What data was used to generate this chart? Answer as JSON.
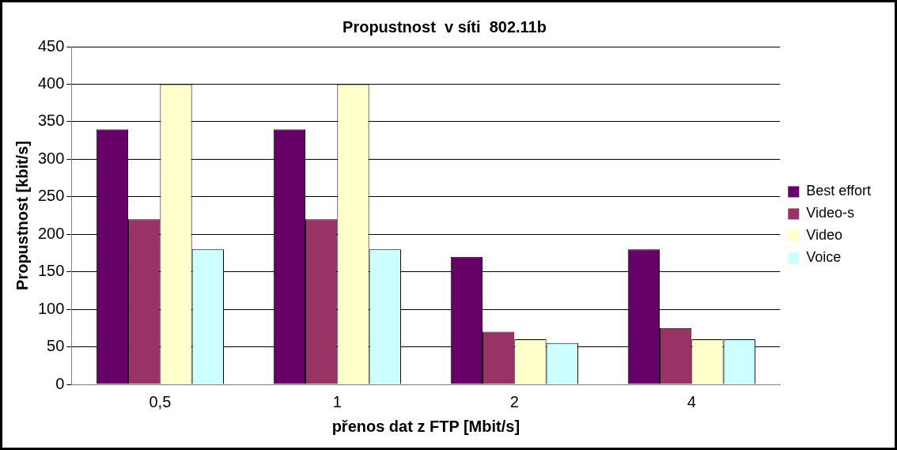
{
  "chart_data": {
    "type": "bar",
    "title": "Propustnost  v síti  802.11b",
    "xlabel": "přenos dat z FTP [Mbit/s]",
    "ylabel": "Propustnost [kbit/s]",
    "categories": [
      "0,5",
      "1",
      "2",
      "4"
    ],
    "series": [
      {
        "name": "Best effort",
        "color": "#660066",
        "values": [
          340,
          340,
          170,
          180
        ]
      },
      {
        "name": "Video-s",
        "color": "#993366",
        "values": [
          220,
          220,
          70,
          75
        ]
      },
      {
        "name": "Video",
        "color": "#ffffcc",
        "values": [
          400,
          400,
          60,
          60
        ]
      },
      {
        "name": "Voice",
        "color": "#ccffff",
        "values": [
          180,
          180,
          55,
          60
        ]
      }
    ],
    "ylim": [
      0,
      450
    ],
    "yticks": [
      0,
      50,
      100,
      150,
      200,
      250,
      300,
      350,
      400,
      450
    ],
    "grid": "y",
    "legend": "right"
  }
}
